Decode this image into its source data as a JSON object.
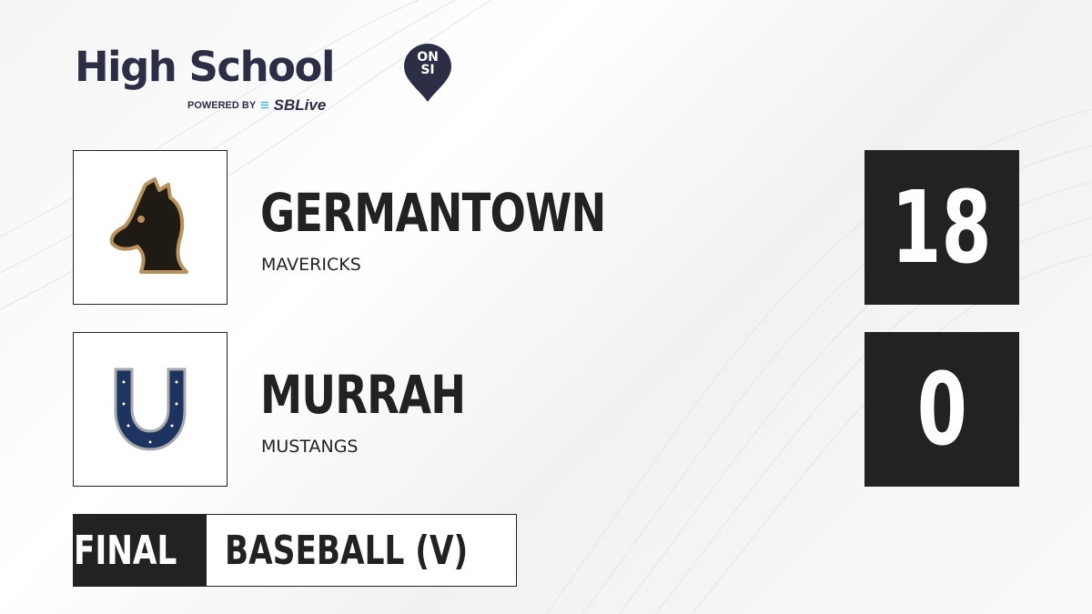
{
  "brand": {
    "title": "High School",
    "badge_line1": "ON",
    "badge_line2": "SI",
    "powered_by": "POWERED BY",
    "partner": "SBLive",
    "partner_color": "#2fb4e8",
    "text_color": "#2b2e45"
  },
  "teams": [
    {
      "name": "GERMANTOWN",
      "mascot": "MAVERICKS",
      "score": "18",
      "logo_icon": "horse-head-icon"
    },
    {
      "name": "MURRAH",
      "mascot": "MUSTANGS",
      "score": "0",
      "logo_icon": "horseshoe-icon"
    }
  ],
  "game": {
    "status": "FINAL",
    "sport": "BASEBALL (V)"
  }
}
